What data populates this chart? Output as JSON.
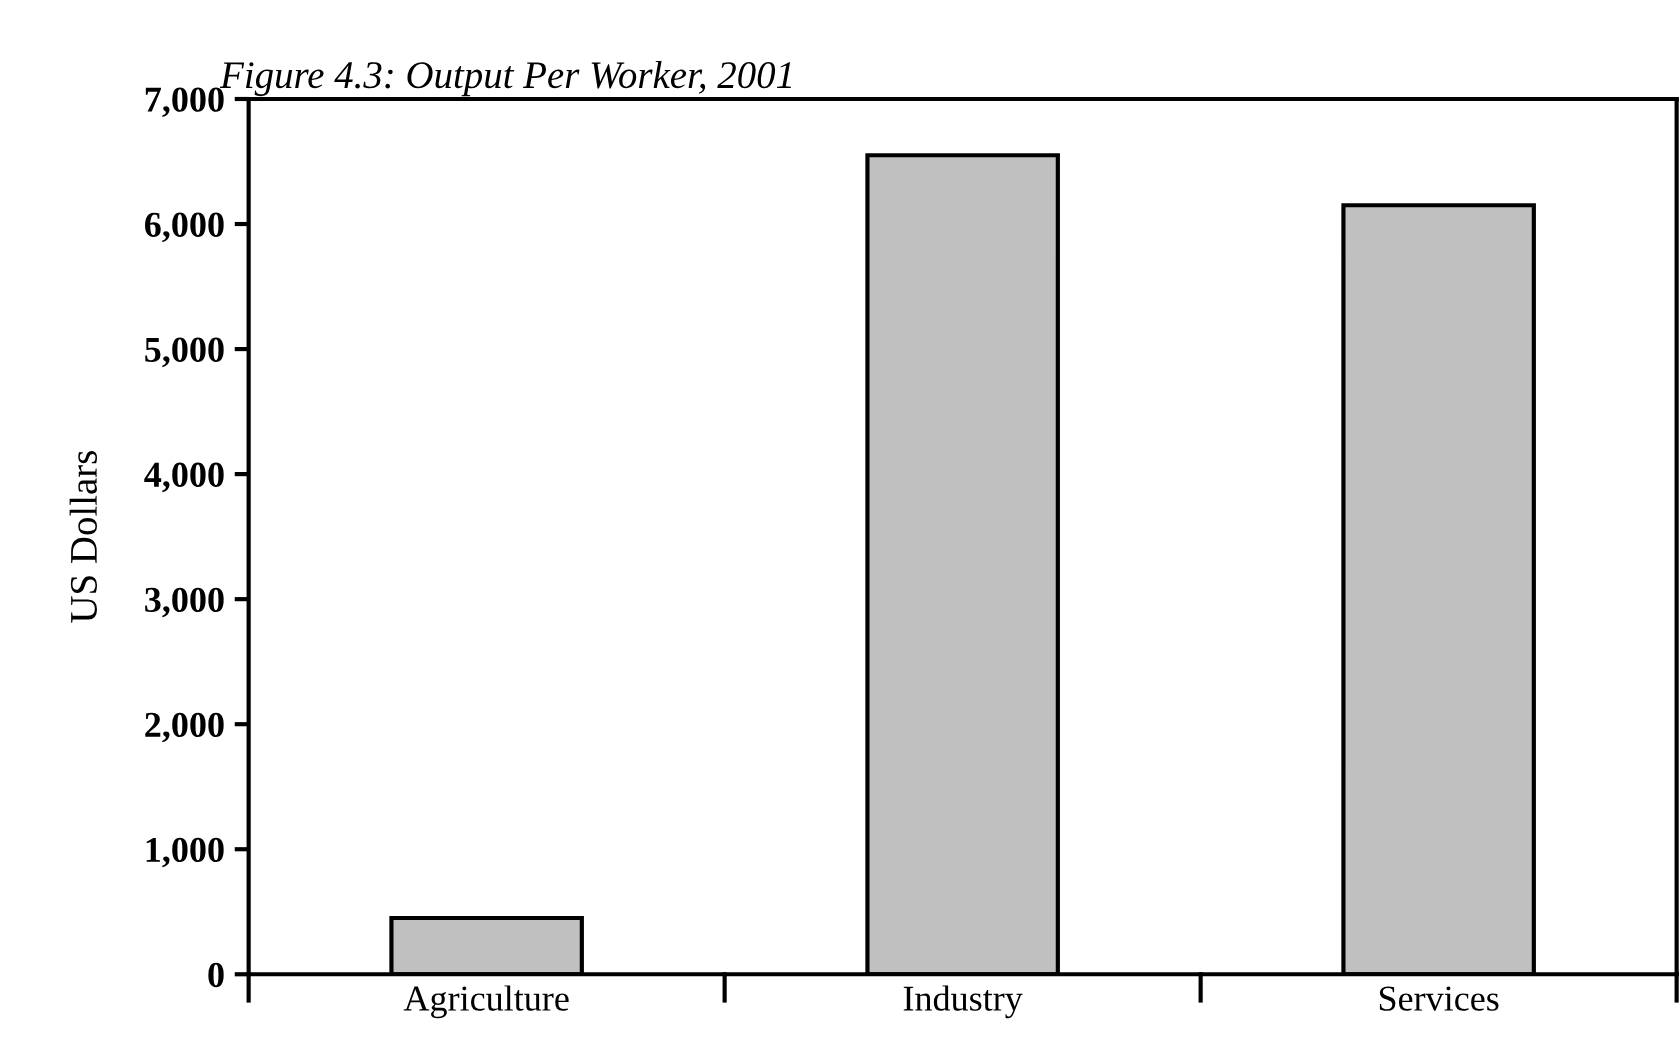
{
  "chart_data": {
    "type": "bar",
    "title": "Figure 4.3: Output Per Worker, 2001",
    "ylabel": "US Dollars",
    "categories": [
      "Agriculture",
      "Industry",
      "Services"
    ],
    "values": [
      450,
      6550,
      6150
    ],
    "color": "#c0c0c0",
    "ylim": [
      0,
      7000
    ],
    "yticks": [
      {
        "value": 0,
        "label": "0"
      },
      {
        "value": 1000,
        "label": "1,000"
      },
      {
        "value": 2000,
        "label": "2,000"
      },
      {
        "value": 3000,
        "label": "3,000"
      },
      {
        "value": 4000,
        "label": "4,000"
      },
      {
        "value": 5000,
        "label": "5,000"
      },
      {
        "value": 6000,
        "label": "6,000"
      },
      {
        "value": 7000,
        "label": "7,000"
      }
    ],
    "grid": false,
    "legend": false
  }
}
